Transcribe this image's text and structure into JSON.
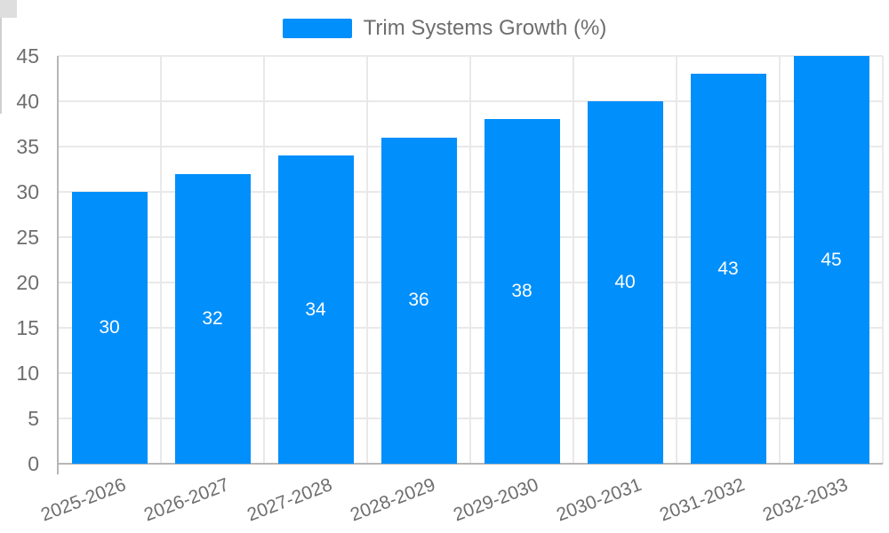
{
  "legend": {
    "label": "Trim Systems Growth (%)"
  },
  "chart_data": {
    "type": "bar",
    "title": "Trim Systems Growth (%)",
    "categories": [
      "2025-2026",
      "2026-2027",
      "2027-2028",
      "2028-2029",
      "2029-2030",
      "2030-2031",
      "2031-2032",
      "2032-2033"
    ],
    "series": [
      {
        "name": "Trim Systems Growth (%)",
        "values": [
          30,
          32,
          34,
          36,
          38,
          40,
          43,
          45
        ]
      }
    ],
    "xlabel": "",
    "ylabel": "",
    "ylim": [
      0,
      45
    ],
    "y_ticks": [
      0,
      5,
      10,
      15,
      20,
      25,
      30,
      35,
      40,
      45
    ],
    "grid": true,
    "legend_position": "top",
    "x_label_rotation_deg": -21,
    "colors": {
      "bar": "#008FFB",
      "value_label": "#ffffff",
      "grid_line": "#e9e9e9",
      "axis_line": "#b6b6b6",
      "axis_label": "#6e6e6e",
      "background": "#ffffff"
    }
  }
}
